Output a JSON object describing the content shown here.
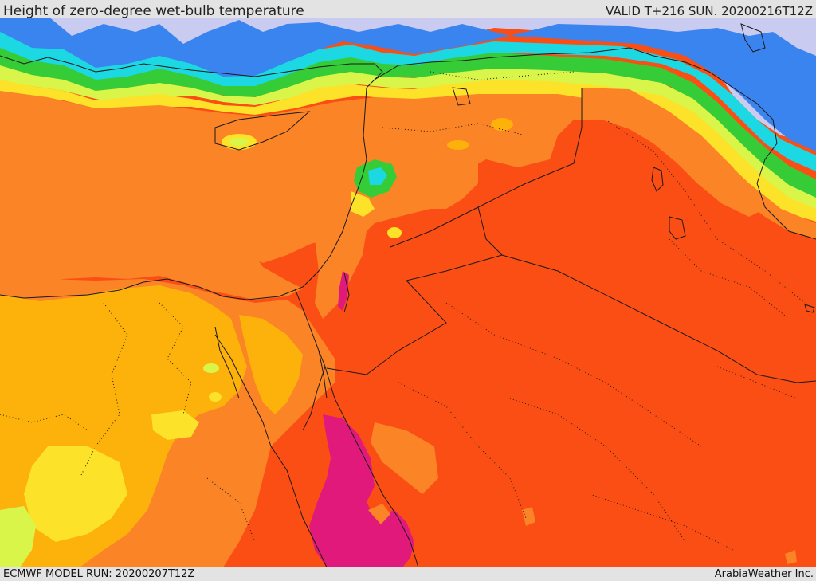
{
  "header": {
    "title": "Height of zero-degree wet-bulb temperature",
    "valid_time": "VALID T+216 SUN. 20200216T12Z"
  },
  "footer": {
    "model_run": "ECMWF MODEL RUN: 20200207T12Z",
    "credit": "ArabiaWeather Inc."
  },
  "palette": {
    "magenta": "#e0197a",
    "red_orange": "#fb4e14",
    "orange": "#fb8426",
    "amber": "#fdb10b",
    "yellow": "#fde22a",
    "light_green": "#d9f54a",
    "green": "#35cc38",
    "cyan": "#1bd8e3",
    "blue": "#3a84f0",
    "lavender": "#c9cbf1",
    "border": "#1a1a1a"
  }
}
